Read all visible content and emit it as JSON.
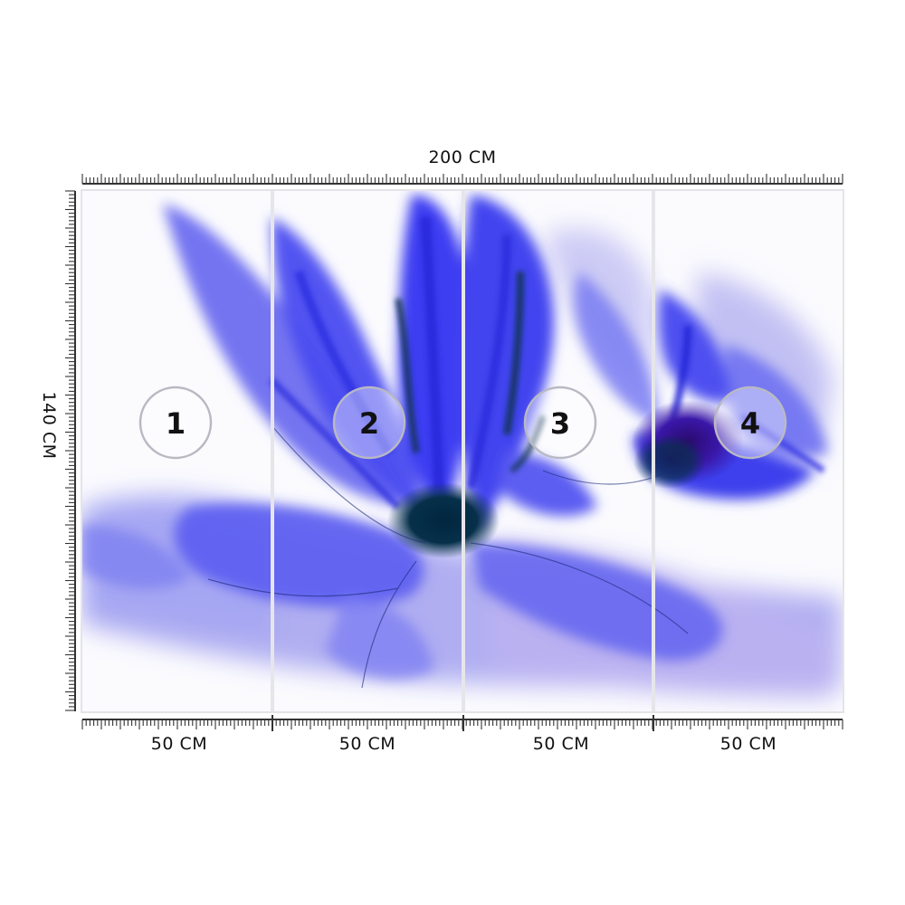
{
  "dimensions": {
    "total_width": "200 CM",
    "height": "140 CM"
  },
  "panels": [
    {
      "number": "1",
      "width": "50 CM"
    },
    {
      "number": "2",
      "width": "50 CM"
    },
    {
      "number": "3",
      "width": "50 CM"
    },
    {
      "number": "4",
      "width": "50 CM"
    }
  ],
  "artwork": {
    "subject": "blue-alcohol-ink-flower",
    "colors": {
      "primary": "#3d3df2",
      "light": "#9a9cf0",
      "lavender": "#b7a6ea",
      "dark": "#06304a",
      "background": "#ffffff"
    }
  },
  "ruler": {
    "color": "#333333"
  }
}
